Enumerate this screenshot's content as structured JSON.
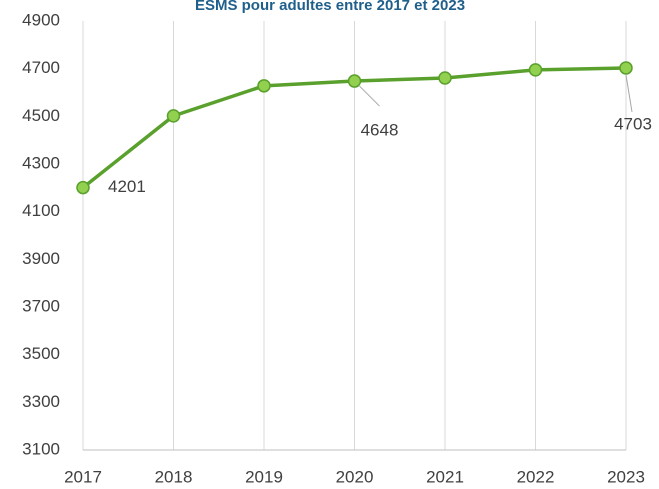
{
  "chart_data": {
    "type": "line",
    "title": "ESMS pour adultes entre 2017 et 2023",
    "categories": [
      "2017",
      "2018",
      "2019",
      "2020",
      "2021",
      "2022",
      "2023"
    ],
    "series": [
      {
        "name": "ESMS pour adultes",
        "color": "#5aa02c",
        "marker_color": "#92d050",
        "values": [
          4201,
          4502,
          4628,
          4648,
          4661,
          4695,
          4703
        ],
        "value_labels": [
          "4201",
          null,
          null,
          "4648",
          null,
          null,
          "4703"
        ]
      }
    ],
    "ylim": [
      3100,
      4900
    ],
    "yticks": [
      3100,
      3300,
      3500,
      3700,
      3900,
      4100,
      4300,
      4500,
      4700,
      4900
    ],
    "grid": "x"
  }
}
